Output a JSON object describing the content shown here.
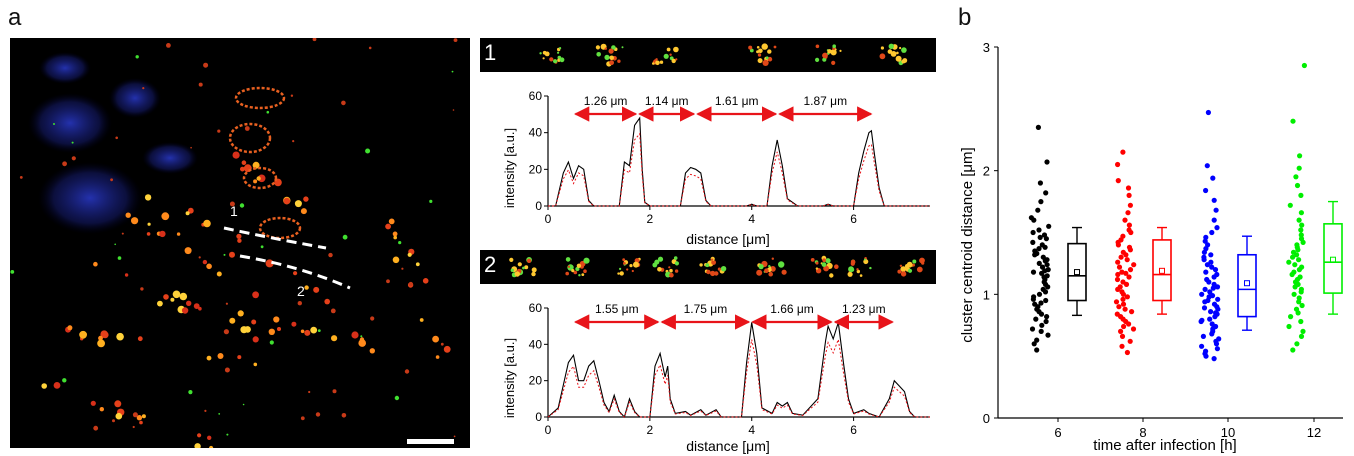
{
  "figure": {
    "panel_a_label": "a",
    "panel_b_label": "b"
  },
  "micrograph": {
    "line_labels": [
      "1",
      "2"
    ]
  },
  "profiles": [
    {
      "strip_label": "1",
      "ylabel": "intensity [a.u.]",
      "xlabel": "distance [μm]",
      "yticks": [
        "0",
        "20",
        "40",
        "60"
      ],
      "xticks": [
        "0",
        "2",
        "4",
        "6"
      ],
      "distances": [
        "1.26 μm",
        "1.14 μm",
        "1.61 μm",
        "1.87 μm"
      ]
    },
    {
      "strip_label": "2",
      "ylabel": "intensity [a.u.]",
      "xlabel": "distance [μm]",
      "yticks": [
        "0",
        "20",
        "40",
        "60"
      ],
      "xticks": [
        "0",
        "2",
        "4",
        "6"
      ],
      "distances": [
        "1.55 μm",
        "1.75 μm",
        "1.66 μm",
        "1.23 μm"
      ]
    }
  ],
  "chart_data": [
    {
      "type": "line",
      "xlabel": "distance [μm]",
      "ylabel": "intensity [a.u.]",
      "xlim": [
        0,
        7.5
      ],
      "ylim": [
        0,
        60
      ],
      "series": [
        {
          "points": [
            [
              0,
              0
            ],
            [
              0.15,
              0
            ],
            [
              0.3,
              18
            ],
            [
              0.4,
              24
            ],
            [
              0.5,
              15
            ],
            [
              0.6,
              22
            ],
            [
              0.7,
              20
            ],
            [
              0.8,
              3
            ],
            [
              0.9,
              0
            ],
            [
              1.4,
              0
            ],
            [
              1.5,
              24
            ],
            [
              1.6,
              22
            ],
            [
              1.7,
              44
            ],
            [
              1.8,
              48
            ],
            [
              1.85,
              20
            ],
            [
              1.9,
              2
            ],
            [
              2.0,
              0
            ],
            [
              2.6,
              0
            ],
            [
              2.7,
              18
            ],
            [
              2.8,
              21
            ],
            [
              2.9,
              20
            ],
            [
              3.0,
              18
            ],
            [
              3.1,
              3
            ],
            [
              3.2,
              0
            ],
            [
              3.9,
              0
            ],
            [
              4.0,
              1
            ],
            [
              4.1,
              0
            ],
            [
              4.3,
              0
            ],
            [
              4.4,
              22
            ],
            [
              4.5,
              36
            ],
            [
              4.6,
              22
            ],
            [
              4.7,
              4
            ],
            [
              4.8,
              2
            ],
            [
              4.9,
              0
            ],
            [
              5.4,
              0
            ],
            [
              5.5,
              1
            ],
            [
              5.6,
              0
            ],
            [
              6.0,
              0
            ],
            [
              6.1,
              18
            ],
            [
              6.2,
              30
            ],
            [
              6.3,
              40
            ],
            [
              6.35,
              41
            ],
            [
              6.4,
              30
            ],
            [
              6.5,
              10
            ],
            [
              6.6,
              0
            ],
            [
              7.5,
              0
            ]
          ]
        }
      ],
      "arrows": [
        [
          0.5,
          1.76
        ],
        [
          1.76,
          2.9
        ],
        [
          2.9,
          4.51
        ],
        [
          4.51,
          6.38
        ]
      ]
    },
    {
      "type": "line",
      "xlabel": "distance [μm]",
      "ylabel": "intensity [a.u.]",
      "xlim": [
        0,
        7.5
      ],
      "ylim": [
        0,
        60
      ],
      "series": [
        {
          "points": [
            [
              0,
              0
            ],
            [
              0.2,
              5
            ],
            [
              0.4,
              30
            ],
            [
              0.5,
              34
            ],
            [
              0.6,
              20
            ],
            [
              0.7,
              20
            ],
            [
              0.8,
              28
            ],
            [
              0.9,
              31
            ],
            [
              1.0,
              20
            ],
            [
              1.1,
              8
            ],
            [
              1.2,
              3
            ],
            [
              1.3,
              12
            ],
            [
              1.4,
              3
            ],
            [
              1.5,
              0
            ],
            [
              1.6,
              10
            ],
            [
              1.7,
              3
            ],
            [
              1.8,
              0
            ],
            [
              2.0,
              0
            ],
            [
              2.1,
              28
            ],
            [
              2.2,
              35
            ],
            [
              2.3,
              22
            ],
            [
              2.35,
              28
            ],
            [
              2.4,
              10
            ],
            [
              2.5,
              2
            ],
            [
              2.7,
              3
            ],
            [
              2.8,
              1
            ],
            [
              3.0,
              4
            ],
            [
              3.1,
              1
            ],
            [
              3.3,
              4
            ],
            [
              3.4,
              0
            ],
            [
              3.8,
              0
            ],
            [
              3.9,
              30
            ],
            [
              4.0,
              52
            ],
            [
              4.1,
              35
            ],
            [
              4.2,
              5
            ],
            [
              4.4,
              2
            ],
            [
              4.5,
              8
            ],
            [
              4.6,
              6
            ],
            [
              4.7,
              8
            ],
            [
              4.8,
              2
            ],
            [
              5.0,
              1
            ],
            [
              5.3,
              10
            ],
            [
              5.45,
              42
            ],
            [
              5.5,
              50
            ],
            [
              5.6,
              43
            ],
            [
              5.7,
              52
            ],
            [
              5.8,
              30
            ],
            [
              5.9,
              10
            ],
            [
              6.0,
              2
            ],
            [
              6.2,
              4
            ],
            [
              6.3,
              2
            ],
            [
              6.5,
              0
            ],
            [
              6.7,
              10
            ],
            [
              6.8,
              20
            ],
            [
              6.9,
              17
            ],
            [
              7.0,
              14
            ],
            [
              7.1,
              3
            ],
            [
              7.2,
              0
            ],
            [
              7.5,
              0
            ]
          ]
        }
      ],
      "arrows": [
        [
          0.5,
          2.2
        ],
        [
          2.2,
          3.98
        ],
        [
          3.98,
          5.6
        ],
        [
          5.6,
          6.8
        ]
      ]
    },
    {
      "type": "scatter",
      "xlabel": "time after infection [h]",
      "ylabel": "cluster centroid distance [μm]",
      "ylim": [
        0,
        3
      ],
      "yticks": [
        "0",
        "1",
        "2",
        "3"
      ],
      "categories": [
        "6",
        "8",
        "10",
        "12"
      ],
      "series": [
        {
          "category": "6",
          "color": "#000000",
          "values": [
            2.35,
            2.07,
            1.9,
            1.82,
            1.75,
            1.68,
            1.62,
            1.6,
            1.55,
            1.52,
            1.5,
            1.48,
            1.46,
            1.45,
            1.42,
            1.4,
            1.38,
            1.37,
            1.35,
            1.33,
            1.32,
            1.3,
            1.28,
            1.27,
            1.25,
            1.24,
            1.22,
            1.2,
            1.19,
            1.18,
            1.17,
            1.15,
            1.14,
            1.12,
            1.1,
            1.08,
            1.06,
            1.04,
            1.02,
            1.0,
            0.98,
            0.96,
            0.95,
            0.93,
            0.92,
            0.9,
            0.88,
            0.86,
            0.84,
            0.82,
            0.8,
            0.78,
            0.75,
            0.72,
            0.7,
            0.67,
            0.63,
            0.6,
            0.55
          ],
          "box": {
            "q1": 0.95,
            "median": 1.15,
            "q3": 1.41,
            "whisker_low": 0.83,
            "whisker_high": 1.54,
            "mean": 1.18
          }
        },
        {
          "category": "8",
          "color": "#ff0000",
          "values": [
            2.15,
            2.05,
            1.92,
            1.86,
            1.8,
            1.72,
            1.66,
            1.6,
            1.56,
            1.52,
            1.5,
            1.47,
            1.44,
            1.42,
            1.4,
            1.38,
            1.36,
            1.34,
            1.32,
            1.3,
            1.28,
            1.26,
            1.24,
            1.22,
            1.2,
            1.18,
            1.17,
            1.16,
            1.14,
            1.12,
            1.1,
            1.08,
            1.06,
            1.04,
            1.02,
            1.0,
            0.98,
            0.96,
            0.94,
            0.92,
            0.9,
            0.88,
            0.86,
            0.84,
            0.82,
            0.8,
            0.78,
            0.76,
            0.74,
            0.72,
            0.7,
            0.66,
            0.62,
            0.58,
            0.53
          ],
          "box": {
            "q1": 0.95,
            "median": 1.16,
            "q3": 1.44,
            "whisker_low": 0.84,
            "whisker_high": 1.54,
            "mean": 1.19
          }
        },
        {
          "category": "10",
          "color": "#0000ff",
          "values": [
            2.47,
            2.04,
            1.94,
            1.84,
            1.76,
            1.68,
            1.6,
            1.54,
            1.5,
            1.46,
            1.43,
            1.4,
            1.37,
            1.34,
            1.32,
            1.3,
            1.28,
            1.26,
            1.24,
            1.22,
            1.2,
            1.18,
            1.16,
            1.14,
            1.12,
            1.1,
            1.08,
            1.06,
            1.05,
            1.04,
            1.02,
            1.0,
            0.99,
            0.98,
            0.96,
            0.95,
            0.94,
            0.92,
            0.9,
            0.89,
            0.88,
            0.86,
            0.85,
            0.84,
            0.82,
            0.8,
            0.79,
            0.78,
            0.76,
            0.74,
            0.72,
            0.7,
            0.68,
            0.66,
            0.64,
            0.62,
            0.6,
            0.58,
            0.56,
            0.54,
            0.52,
            0.5,
            0.48
          ],
          "box": {
            "q1": 0.82,
            "median": 1.04,
            "q3": 1.32,
            "whisker_low": 0.71,
            "whisker_high": 1.47,
            "mean": 1.09
          }
        },
        {
          "category": "12",
          "color": "#00ee00",
          "values": [
            2.85,
            2.4,
            2.12,
            2.02,
            1.95,
            1.88,
            1.8,
            1.72,
            1.66,
            1.6,
            1.56,
            1.52,
            1.48,
            1.45,
            1.42,
            1.4,
            1.38,
            1.36,
            1.34,
            1.32,
            1.3,
            1.28,
            1.26,
            1.24,
            1.22,
            1.2,
            1.18,
            1.16,
            1.14,
            1.12,
            1.1,
            1.08,
            1.06,
            1.04,
            1.02,
            1.0,
            0.97,
            0.94,
            0.91,
            0.88,
            0.85,
            0.82,
            0.78,
            0.74,
            0.7,
            0.66,
            0.6,
            0.55
          ],
          "box": {
            "q1": 1.01,
            "median": 1.26,
            "q3": 1.57,
            "whisker_low": 0.84,
            "whisker_high": 1.75,
            "mean": 1.28
          }
        }
      ]
    }
  ]
}
